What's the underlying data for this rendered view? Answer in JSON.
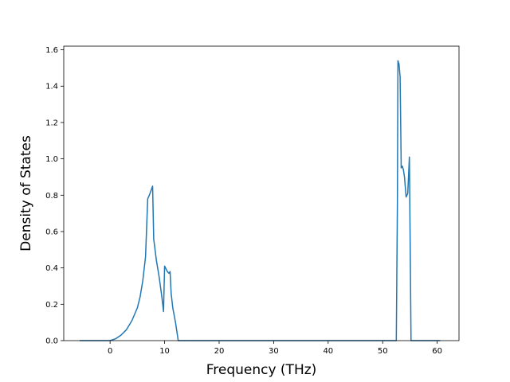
{
  "chart_data": {
    "type": "line",
    "title": "",
    "xlabel": "Frequency (THz)",
    "ylabel": "Density of States",
    "xlim": [
      -8.5,
      64
    ],
    "ylim": [
      0,
      1.62
    ],
    "xticks": [
      0,
      10,
      20,
      30,
      40,
      50,
      60
    ],
    "xtick_labels": [
      "0",
      "10",
      "20",
      "30",
      "40",
      "50",
      "60"
    ],
    "yticks": [
      0.0,
      0.2,
      0.4,
      0.6,
      0.8,
      1.0,
      1.2,
      1.4,
      1.6
    ],
    "ytick_labels": [
      "0.0",
      "0.2",
      "0.4",
      "0.6",
      "0.8",
      "1.0",
      "1.2",
      "1.4",
      "1.6"
    ],
    "grid": false,
    "legend": "none",
    "colors": {
      "series": "#1f77b4",
      "axes": "#000000",
      "background": "#ffffff"
    },
    "series": [
      {
        "x": [
          -5.5,
          -2.0,
          0.0,
          1.0,
          2.0,
          3.0,
          4.0,
          5.0,
          5.5,
          6.0,
          6.5,
          6.9,
          7.2,
          7.8,
          8.0,
          8.5,
          9.0,
          9.5,
          9.8,
          10.0,
          10.5,
          10.8,
          11.0,
          11.2,
          11.5,
          12.0,
          12.5,
          13.0,
          20,
          30,
          40,
          50,
          52.5,
          52.7,
          52.8,
          53.0,
          53.2,
          53.4,
          53.6,
          53.8,
          54.0,
          54.3,
          54.6,
          54.9,
          55.1,
          55.2,
          55.4,
          55.5,
          56.0,
          60.5
        ],
        "y": [
          0.0,
          0.0,
          0.0,
          0.01,
          0.03,
          0.06,
          0.11,
          0.18,
          0.24,
          0.33,
          0.46,
          0.78,
          0.8,
          0.85,
          0.56,
          0.44,
          0.35,
          0.24,
          0.16,
          0.41,
          0.38,
          0.37,
          0.38,
          0.26,
          0.18,
          0.1,
          0.0,
          0.0,
          0.0,
          0.0,
          0.0,
          0.0,
          0.0,
          0.75,
          1.54,
          1.52,
          1.45,
          0.95,
          0.96,
          0.94,
          0.9,
          0.79,
          0.81,
          1.01,
          0.35,
          0.0,
          0.0,
          0.0,
          0.0,
          0.0
        ]
      }
    ]
  }
}
